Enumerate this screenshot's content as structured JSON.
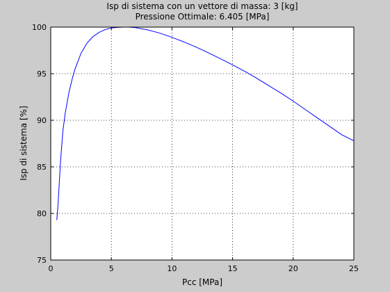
{
  "figure": {
    "background": "#cccccc",
    "axes_background": "#ffffff",
    "line_color": "#0000ff"
  },
  "chart_data": {
    "type": "line",
    "title": [
      "Isp di sistema con un vettore di massa: 3 [kg]",
      "Pressione Ottimale: 6.405 [MPa]"
    ],
    "xlabel": "Pcc [MPa]",
    "ylabel": "Isp di sistema [%]",
    "xlim": [
      0,
      25
    ],
    "ylim": [
      75,
      100
    ],
    "xticks": [
      0,
      5,
      10,
      15,
      20,
      25
    ],
    "yticks": [
      75,
      80,
      85,
      90,
      95,
      100
    ],
    "grid": "dotted",
    "legend": "none",
    "series": [
      {
        "x": [
          0.5,
          0.6,
          0.8,
          1.0,
          1.2,
          1.5,
          1.8,
          2.0,
          2.5,
          3.0,
          3.5,
          4.0,
          4.5,
          5.0,
          5.5,
          6.0,
          6.405,
          7.0,
          8.0,
          9.0,
          10.0,
          11.0,
          12.0,
          13.0,
          14.0,
          15.0,
          16.0,
          17.0,
          18.0,
          19.0,
          20.0,
          21.0,
          22.0,
          23.0,
          24.0,
          25.0
        ],
        "y": [
          79.3,
          81.0,
          85.5,
          88.8,
          90.8,
          93.0,
          94.6,
          95.5,
          97.2,
          98.3,
          99.0,
          99.45,
          99.75,
          99.9,
          99.97,
          100.0,
          100.0,
          99.95,
          99.7,
          99.35,
          98.9,
          98.4,
          97.85,
          97.25,
          96.6,
          95.95,
          95.25,
          94.5,
          93.7,
          92.9,
          92.05,
          91.15,
          90.25,
          89.35,
          88.45,
          87.8
        ]
      }
    ]
  }
}
